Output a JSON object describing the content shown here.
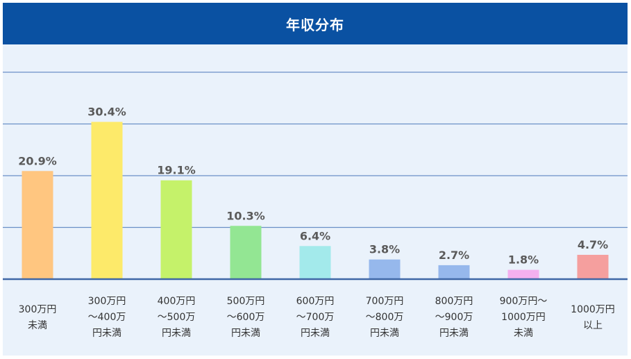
{
  "chart_data": {
    "type": "bar",
    "title": "年収分布",
    "categories": [
      [
        "300万円",
        "未満"
      ],
      [
        "300万円",
        "～400万",
        "円未満"
      ],
      [
        "400万円",
        "～500万",
        "円未満"
      ],
      [
        "500万円",
        "～600万",
        "円未満"
      ],
      [
        "600万円",
        "～700万",
        "円未満"
      ],
      [
        "700万円",
        "～800万",
        "円未満"
      ],
      [
        "800万円",
        "～900万",
        "円未満"
      ],
      [
        "900万円～",
        "1000万円",
        "未満"
      ],
      [
        "1000万円",
        "以上"
      ]
    ],
    "values": [
      20.9,
      30.4,
      19.1,
      10.3,
      6.4,
      3.8,
      2.7,
      1.8,
      4.7
    ],
    "labels": [
      "20.9%",
      "30.4%",
      "19.1%",
      "10.3%",
      "6.4%",
      "3.8%",
      "2.7%",
      "1.8%",
      "4.7%"
    ],
    "colors": [
      "#ffc680",
      "#fdea6a",
      "#c5f26a",
      "#93e693",
      "#a3eaeb",
      "#96b8ec",
      "#96b8ec",
      "#f5b0ef",
      "#f59f9e"
    ],
    "ylim": [
      0,
      40
    ],
    "grid": true,
    "gridline_color": "#6a8fc6",
    "header_color": "#0a51a2"
  }
}
